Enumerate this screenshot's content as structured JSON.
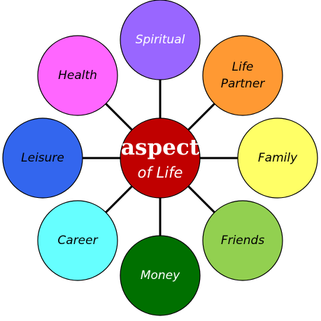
{
  "center": {
    "title": "aspect",
    "subtitle": "of Life",
    "color": "#c00000"
  },
  "nodes": [
    {
      "id": "spiritual",
      "lines": [
        "Spiritual"
      ],
      "fill": "#9966ff",
      "text_color": "#ffffff"
    },
    {
      "id": "life-partner",
      "lines": [
        "Life",
        "Partner"
      ],
      "fill": "#ff9933",
      "text_color": "#000000"
    },
    {
      "id": "family",
      "lines": [
        "Family"
      ],
      "fill": "#ffff66",
      "text_color": "#000000"
    },
    {
      "id": "friends",
      "lines": [
        "Friends"
      ],
      "fill": "#92d050",
      "text_color": "#000000"
    },
    {
      "id": "money",
      "lines": [
        "Money"
      ],
      "fill": "#007000",
      "text_color": "#ffffff"
    },
    {
      "id": "career",
      "lines": [
        "Career"
      ],
      "fill": "#66ffff",
      "text_color": "#000000"
    },
    {
      "id": "leisure",
      "lines": [
        "Leisure"
      ],
      "fill": "#3366ee",
      "text_color": "#000000"
    },
    {
      "id": "health",
      "lines": [
        "Health"
      ],
      "fill": "#ff66ff",
      "text_color": "#000000"
    }
  ]
}
